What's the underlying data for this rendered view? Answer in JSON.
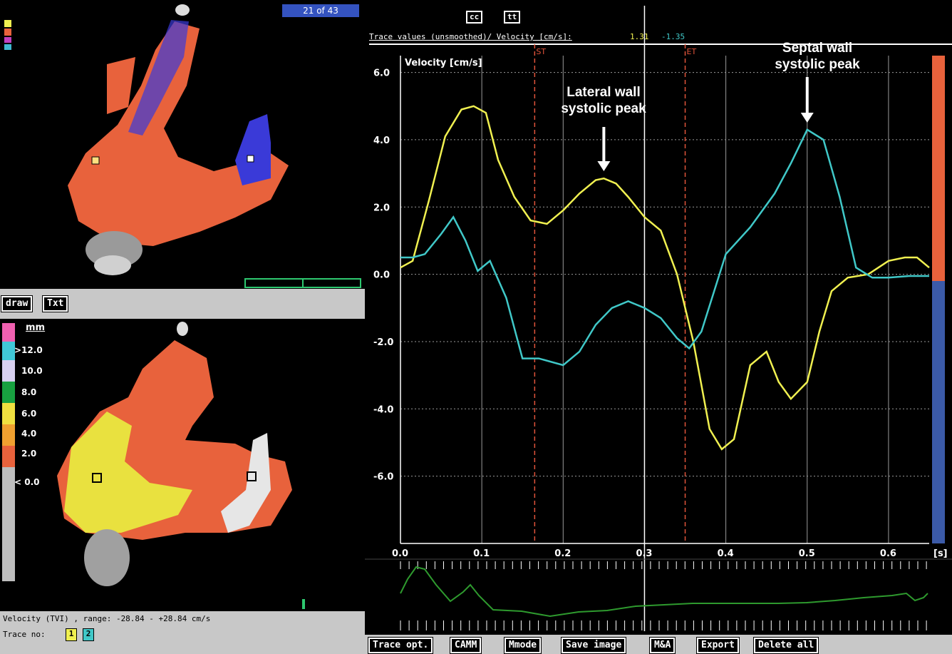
{
  "top_image": {
    "frame_counter": "21 of 43",
    "toolbar": {
      "draw_label": "draw",
      "txt_label": "Txt"
    }
  },
  "bottom_image": {
    "legend_unit": "mm",
    "legend_labels": [
      ">12.0",
      "10.0",
      "8.0",
      "6.0",
      "4.0",
      "2.0",
      "< 0.0"
    ],
    "status_velocity": "Velocity (TVI) , range: -28.84 - +28.84 cm/s",
    "status_trace_label": "Trace no:",
    "trace_numbers": [
      "1",
      "2"
    ]
  },
  "chart_header": {
    "cc_label": "cc",
    "tt_label": "tt",
    "trace_values_label": "Trace values (unsmoothed)/ Velocity [cm/s]:",
    "trace_value_1": "1.31",
    "trace_value_2": "-1.35"
  },
  "annotations": {
    "lateral": "Lateral wall\nsystolic peak",
    "septal": "Septal wall\nsystolic peak"
  },
  "bottom_toolbar": [
    "Trace opt.",
    "CAMM",
    "Mmode",
    "Save image",
    "M&A",
    "Export",
    "Delete all"
  ],
  "colors": {
    "tissue_red": "#e8623c",
    "doppler_blue": "#3a3ad8",
    "yellow_trace": "#f0f050",
    "cyan_trace": "#40c8c8",
    "green_trace": "#2e9a2e",
    "scale_red": "#e8623c",
    "scale_blue": "#3b5aa8"
  },
  "chart_data": {
    "type": "line",
    "title": "",
    "ylabel": "Velocity [cm/s]",
    "xunit": "[s]",
    "xlim": [
      0.0,
      0.65
    ],
    "ylim": [
      -8.0,
      6.5
    ],
    "xticks": [
      0.0,
      0.1,
      0.2,
      0.3,
      0.4,
      0.5,
      0.6
    ],
    "xtick_labels": [
      "0.0",
      "0.1",
      "0.2",
      "0.3",
      "0.4",
      "0.5",
      "0.6"
    ],
    "yticks": [
      6.0,
      4.0,
      2.0,
      0.0,
      -2.0,
      -4.0,
      -6.0
    ],
    "ytick_labels": [
      "6.0",
      "4.0",
      "2.0",
      "0.0",
      "-2.0",
      "-4.0",
      "-6.0"
    ],
    "grid": true,
    "markers": [
      {
        "label": "ST",
        "x": 0.165
      },
      {
        "label": "ET",
        "x": 0.35
      }
    ],
    "cursor_x": 0.3,
    "series": [
      {
        "color": "yellow",
        "x": [
          0.0,
          0.015,
          0.035,
          0.055,
          0.075,
          0.09,
          0.105,
          0.12,
          0.14,
          0.16,
          0.18,
          0.2,
          0.22,
          0.24,
          0.25,
          0.265,
          0.28,
          0.3,
          0.32,
          0.34,
          0.36,
          0.38,
          0.395,
          0.41,
          0.43,
          0.45,
          0.465,
          0.48,
          0.5,
          0.515,
          0.53,
          0.55,
          0.575,
          0.6,
          0.62,
          0.635,
          0.65
        ],
        "y": [
          0.2,
          0.4,
          2.2,
          4.1,
          4.9,
          5.0,
          4.8,
          3.4,
          2.3,
          1.6,
          1.5,
          1.9,
          2.4,
          2.8,
          2.85,
          2.7,
          2.3,
          1.7,
          1.3,
          0.0,
          -2.0,
          -4.6,
          -5.2,
          -4.9,
          -2.7,
          -2.3,
          -3.2,
          -3.7,
          -3.2,
          -1.7,
          -0.5,
          -0.1,
          0.0,
          0.4,
          0.5,
          0.5,
          0.2
        ]
      },
      {
        "color": "cyan",
        "x": [
          0.0,
          0.015,
          0.03,
          0.05,
          0.065,
          0.08,
          0.095,
          0.11,
          0.13,
          0.15,
          0.17,
          0.2,
          0.22,
          0.24,
          0.26,
          0.28,
          0.3,
          0.32,
          0.34,
          0.355,
          0.37,
          0.4,
          0.43,
          0.46,
          0.48,
          0.5,
          0.52,
          0.54,
          0.56,
          0.58,
          0.6,
          0.625,
          0.65
        ],
        "y": [
          0.5,
          0.5,
          0.6,
          1.2,
          1.7,
          1.0,
          0.1,
          0.4,
          -0.7,
          -2.5,
          -2.5,
          -2.7,
          -2.3,
          -1.5,
          -1.0,
          -0.8,
          -1.0,
          -1.3,
          -1.9,
          -2.2,
          -1.7,
          0.6,
          1.4,
          2.4,
          3.3,
          4.3,
          4.0,
          2.3,
          0.2,
          -0.1,
          -0.1,
          -0.05,
          -0.05
        ]
      }
    ]
  }
}
